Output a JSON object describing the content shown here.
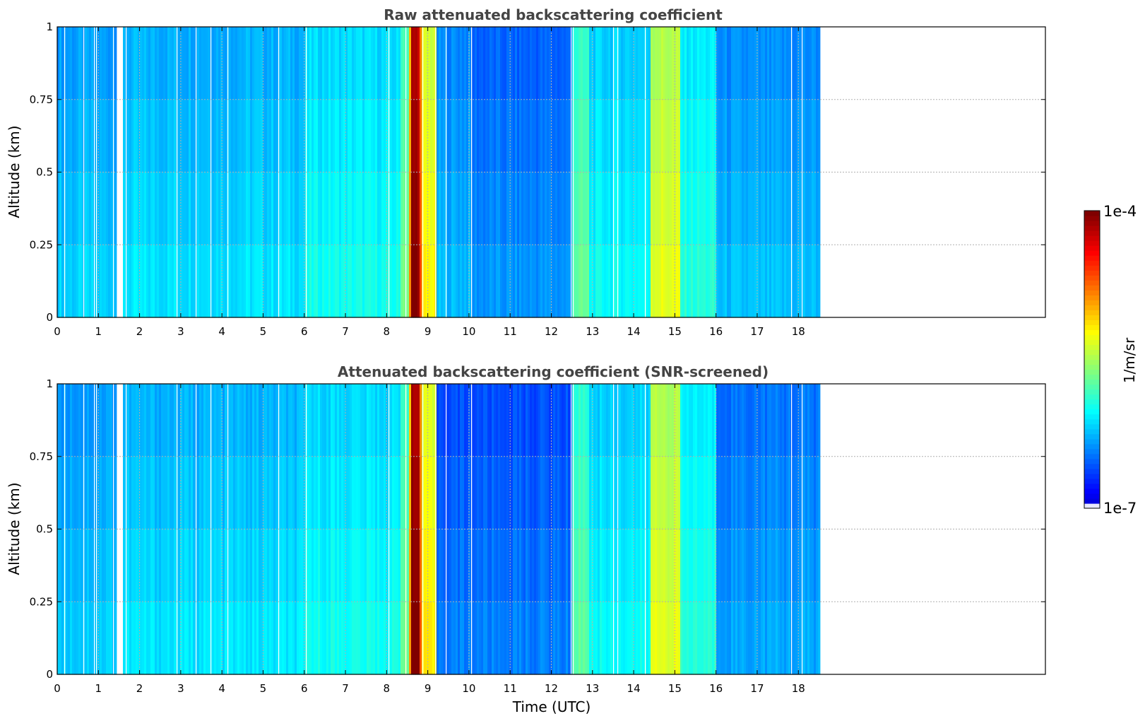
{
  "chart_data": [
    {
      "type": "heatmap",
      "title": "Raw attenuated backscattering coefficient",
      "xlabel": "",
      "ylabel": "Altitude (km)",
      "xlim": [
        0,
        24
      ],
      "ylim": [
        0,
        1
      ],
      "x_ticks": [
        "0",
        "1",
        "2",
        "3",
        "4",
        "5",
        "6",
        "7",
        "8",
        "9",
        "10",
        "11",
        "12",
        "13",
        "14",
        "15",
        "16",
        "17",
        "18"
      ],
      "y_ticks": [
        "0",
        "0.25",
        "0.5",
        "0.75",
        "1"
      ],
      "data_extent_hours": [
        0,
        18.5
      ],
      "gaps_hours": [
        [
          1.43,
          1.57
        ]
      ],
      "grid": true,
      "bands": [
        {
          "from": 0.0,
          "to": 1.43,
          "level": 0.28
        },
        {
          "from": 1.57,
          "to": 6.0,
          "level": 0.3
        },
        {
          "from": 6.0,
          "to": 8.3,
          "level": 0.34
        },
        {
          "from": 8.3,
          "to": 8.5,
          "level": 0.45
        },
        {
          "from": 8.5,
          "to": 8.58,
          "level": 0.68
        },
        {
          "from": 8.58,
          "to": 8.75,
          "level": 0.95
        },
        {
          "from": 8.75,
          "to": 8.85,
          "level": 0.75
        },
        {
          "from": 8.85,
          "to": 9.2,
          "level": 0.58
        },
        {
          "from": 9.2,
          "to": 10.0,
          "level": 0.26
        },
        {
          "from": 10.0,
          "to": 12.5,
          "level": 0.22
        },
        {
          "from": 12.5,
          "to": 12.9,
          "level": 0.42
        },
        {
          "from": 12.9,
          "to": 14.4,
          "level": 0.33
        },
        {
          "from": 14.4,
          "to": 15.1,
          "level": 0.55
        },
        {
          "from": 15.1,
          "to": 16.0,
          "level": 0.36
        },
        {
          "from": 16.0,
          "to": 18.5,
          "level": 0.26
        }
      ]
    },
    {
      "type": "heatmap",
      "title": "Attenuated backscattering coefficient (SNR-screened)",
      "xlabel": "Time (UTC)",
      "ylabel": "Altitude (km)",
      "xlim": [
        0,
        24
      ],
      "ylim": [
        0,
        1
      ],
      "x_ticks": [
        "0",
        "1",
        "2",
        "3",
        "4",
        "5",
        "6",
        "7",
        "8",
        "9",
        "10",
        "11",
        "12",
        "13",
        "14",
        "15",
        "16",
        "17",
        "18"
      ],
      "y_ticks": [
        "0",
        "0.25",
        "0.5",
        "0.75",
        "1"
      ],
      "data_extent_hours": [
        0,
        18.5
      ],
      "gaps_hours": [
        [
          1.43,
          1.57
        ]
      ],
      "grid": true,
      "bands": [
        {
          "from": 0.0,
          "to": 1.43,
          "level": 0.28
        },
        {
          "from": 1.57,
          "to": 6.0,
          "level": 0.3
        },
        {
          "from": 6.0,
          "to": 8.3,
          "level": 0.34
        },
        {
          "from": 8.3,
          "to": 8.5,
          "level": 0.45
        },
        {
          "from": 8.5,
          "to": 8.58,
          "level": 0.68
        },
        {
          "from": 8.58,
          "to": 8.75,
          "level": 0.95
        },
        {
          "from": 8.75,
          "to": 8.85,
          "level": 0.75
        },
        {
          "from": 8.85,
          "to": 9.2,
          "level": 0.58
        },
        {
          "from": 9.2,
          "to": 10.0,
          "level": 0.2
        },
        {
          "from": 10.0,
          "to": 12.5,
          "level": 0.2
        },
        {
          "from": 12.5,
          "to": 12.9,
          "level": 0.42
        },
        {
          "from": 12.9,
          "to": 14.4,
          "level": 0.33
        },
        {
          "from": 14.4,
          "to": 15.1,
          "level": 0.55
        },
        {
          "from": 15.1,
          "to": 16.0,
          "level": 0.36
        },
        {
          "from": 16.0,
          "to": 18.5,
          "level": 0.24
        }
      ]
    }
  ],
  "colorbar": {
    "label": "1/m/sr",
    "max_label": "1e-4",
    "min_label": "1e-7",
    "colormap": "jet",
    "min_color": "#e8e8ff",
    "max_color": "#7f0000"
  }
}
